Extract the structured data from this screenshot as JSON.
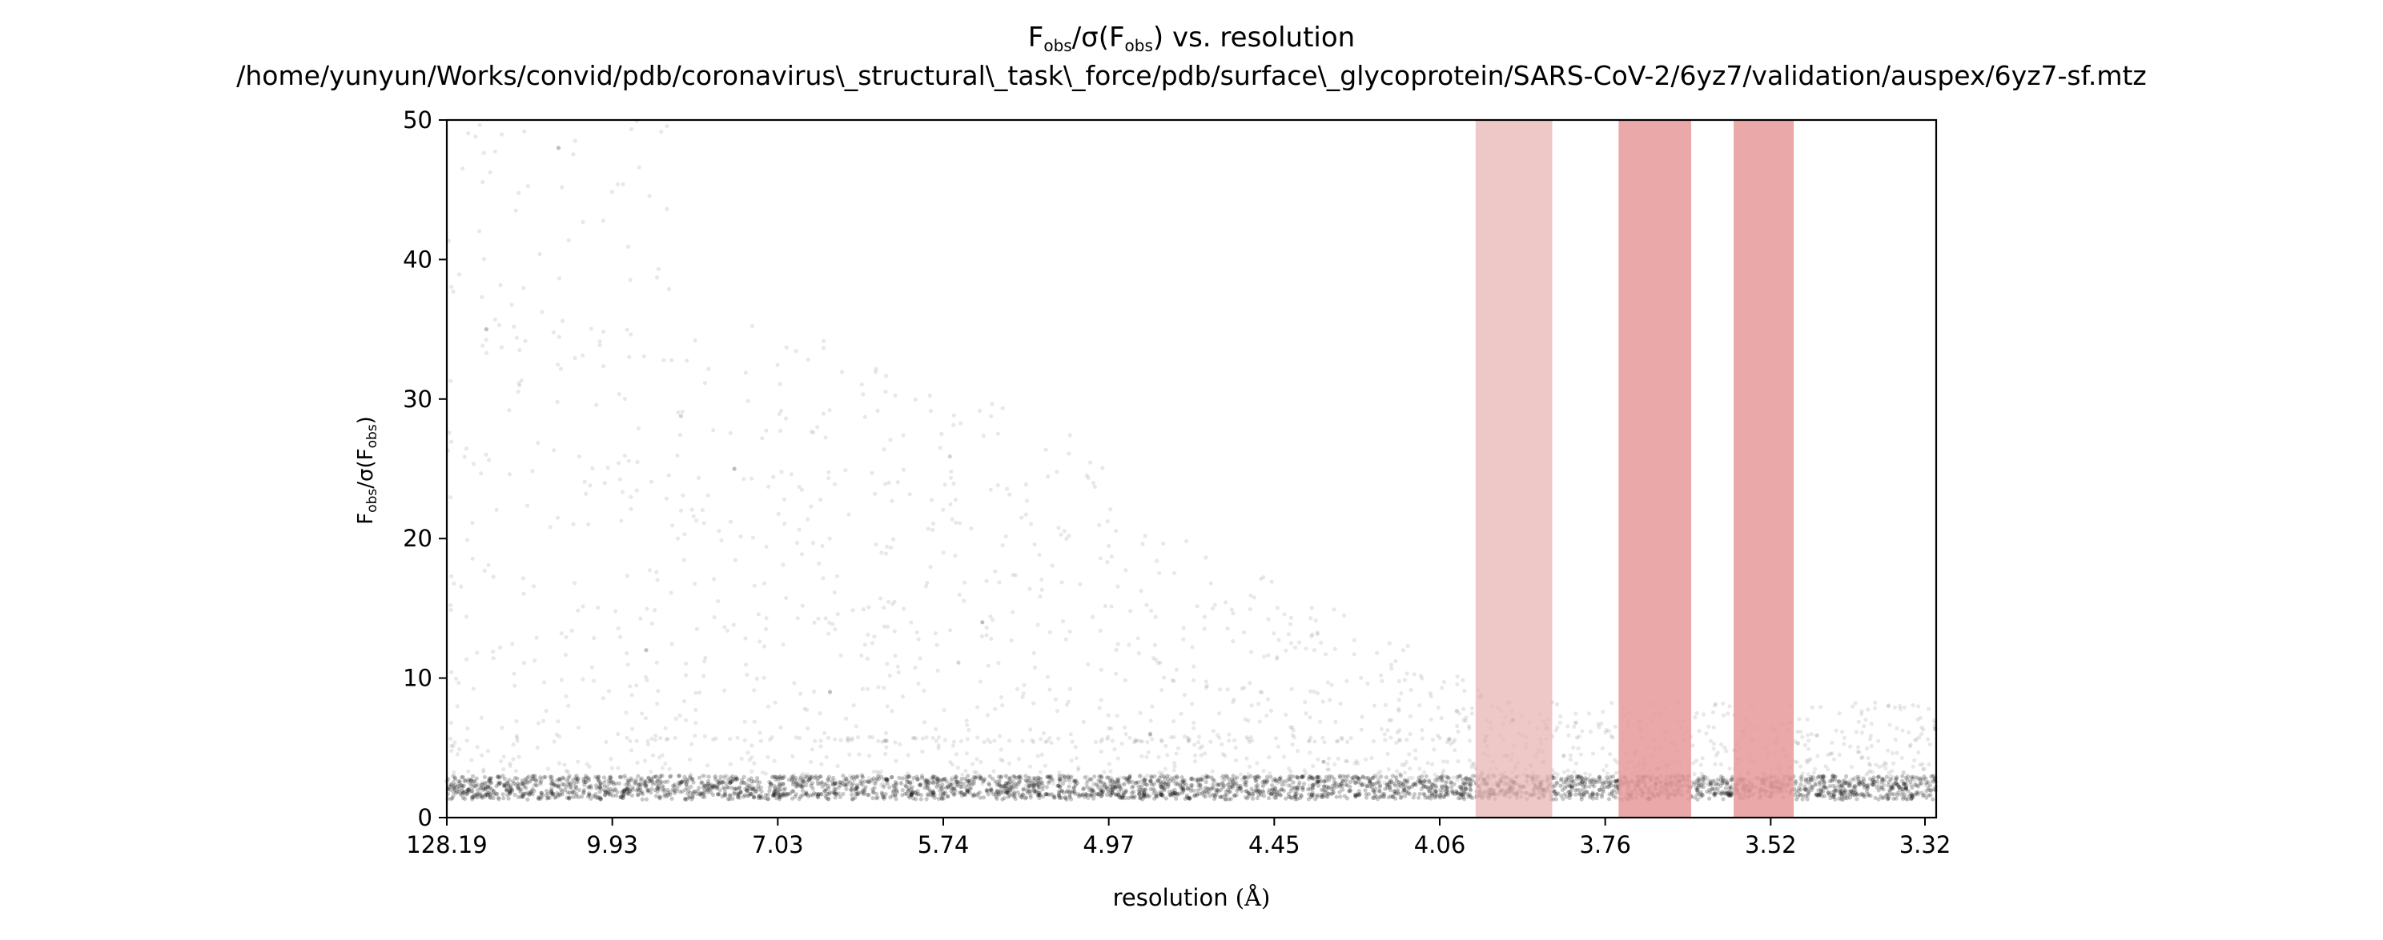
{
  "chart_data": {
    "type": "scatter",
    "title": {
      "line1": {
        "main": "F",
        "sub1": "obs",
        "mid": "/σ(F",
        "sub2": "obs",
        "end": ") vs. resolution"
      },
      "line2": "/home/yunyun/Works/convid/pdb/coronavirus\\_structural\\_task\\_force/pdb/surface\\_glycoprotein/SARS-CoV-2/6yz7/validation/auspex/6yz7-sf.mtz"
    },
    "xlabel": {
      "text": "resolution ",
      "unit": "(Å)"
    },
    "ylabel": {
      "main": "F",
      "sub1": "obs",
      "mid": "/σ(F",
      "sub2": "obs",
      "end": ")"
    },
    "x_axis_scale": "inverse-square resolution (1/d²), labelled in Å",
    "x_ticks": [
      "128.19",
      "9.93",
      "7.03",
      "5.74",
      "4.97",
      "4.45",
      "4.06",
      "3.76",
      "3.52",
      "3.32"
    ],
    "xlim_angstrom": [
      128.19,
      3.3
    ],
    "ylim": [
      0,
      50
    ],
    "y_ticks": [
      "0",
      "10",
      "20",
      "30",
      "40",
      "50"
    ],
    "grid": false,
    "point_color": "#000000",
    "ice_ring_bands": [
      {
        "from_angstrom": 3.97,
        "to_angstrom": 3.83,
        "color": "#e8b1b1",
        "opacity": 0.72
      },
      {
        "from_angstrom": 3.72,
        "to_angstrom": 3.61,
        "color": "#e89999",
        "opacity": 0.85
      },
      {
        "from_angstrom": 3.55,
        "to_angstrom": 3.47,
        "color": "#e89999",
        "opacity": 0.85
      }
    ],
    "series": [
      {
        "description_points": "dense scatter of F/sigma per reflection",
        "main_band_y": 2.3,
        "lower_floor_y": 1.5,
        "upper_streak_y": 5.6,
        "sample_points": [
          {
            "x": 60.0,
            "y": 2.0
          },
          {
            "x": 20.0,
            "y": 35.0
          },
          {
            "x": 12.0,
            "y": 48.0
          },
          {
            "x": 9.0,
            "y": 12.0
          },
          {
            "x": 7.5,
            "y": 25.0
          },
          {
            "x": 6.5,
            "y": 9.0
          },
          {
            "x": 5.5,
            "y": 14.0
          },
          {
            "x": 4.8,
            "y": 6.0
          },
          {
            "x": 4.3,
            "y": 4.0
          },
          {
            "x": 4.0,
            "y": 3.0
          },
          {
            "x": 3.9,
            "y": 7.0
          },
          {
            "x": 3.66,
            "y": 3.5
          },
          {
            "x": 3.5,
            "y": 2.5
          },
          {
            "x": 3.35,
            "y": 2.1
          }
        ]
      }
    ]
  }
}
